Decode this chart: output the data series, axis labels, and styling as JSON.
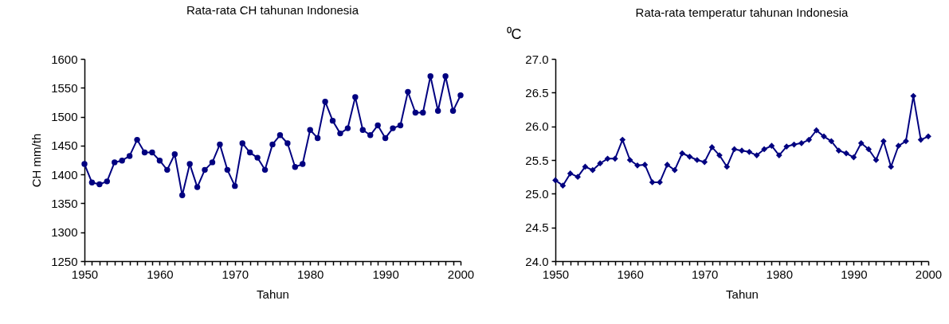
{
  "chart_data": [
    {
      "type": "line",
      "title": "Rata-rata CH tahunan Indonesia",
      "xlabel": "Tahun",
      "ylabel": "CH mm/th",
      "marker": "circle",
      "grid": false,
      "x": [
        1950,
        1951,
        1952,
        1953,
        1954,
        1955,
        1956,
        1957,
        1958,
        1959,
        1960,
        1961,
        1962,
        1963,
        1964,
        1965,
        1966,
        1967,
        1968,
        1969,
        1970,
        1971,
        1972,
        1973,
        1974,
        1975,
        1976,
        1977,
        1978,
        1979,
        1980,
        1981,
        1982,
        1983,
        1984,
        1985,
        1986,
        1987,
        1988,
        1989,
        1990,
        1991,
        1992,
        1993,
        1994,
        1995,
        1996,
        1997,
        1998,
        1999,
        2000
      ],
      "series": [
        {
          "color": "#000080",
          "values": [
            1418,
            1386,
            1383,
            1388,
            1421,
            1424,
            1432,
            1460,
            1438,
            1438,
            1424,
            1408,
            1435,
            1364,
            1418,
            1378,
            1408,
            1421,
            1452,
            1408,
            1380,
            1454,
            1438,
            1429,
            1408,
            1452,
            1468,
            1454,
            1413,
            1418,
            1477,
            1463,
            1526,
            1493,
            1471,
            1480,
            1534,
            1477,
            1468,
            1485,
            1463,
            1480,
            1485,
            1543,
            1507,
            1507,
            1570,
            1510,
            1570,
            1510,
            1537
          ]
        }
      ],
      "xlim": [
        1950,
        2000
      ],
      "xticks": [
        1950,
        {
          "value": 1951,
          "label": null
        },
        {
          "value": 1952,
          "label": null
        },
        {
          "value": 1953,
          "label": null
        },
        {
          "value": 1954,
          "label": null
        },
        {
          "value": 1955,
          "label": null
        },
        {
          "value": 1956,
          "label": null
        },
        {
          "value": 1957,
          "label": null
        },
        {
          "value": 1958,
          "label": null
        },
        {
          "value": 1959,
          "label": null
        },
        1960,
        {
          "value": 1961,
          "label": null
        },
        {
          "value": 1962,
          "label": null
        },
        {
          "value": 1963,
          "label": null
        },
        {
          "value": 1964,
          "label": null
        },
        {
          "value": 1965,
          "label": null
        },
        {
          "value": 1966,
          "label": null
        },
        {
          "value": 1967,
          "label": null
        },
        {
          "value": 1968,
          "label": null
        },
        {
          "value": 1969,
          "label": null
        },
        1970,
        {
          "value": 1971,
          "label": null
        },
        {
          "value": 1972,
          "label": null
        },
        {
          "value": 1973,
          "label": null
        },
        {
          "value": 1974,
          "label": null
        },
        {
          "value": 1975,
          "label": null
        },
        {
          "value": 1976,
          "label": null
        },
        {
          "value": 1977,
          "label": null
        },
        {
          "value": 1978,
          "label": null
        },
        {
          "value": 1979,
          "label": null
        },
        1980,
        {
          "value": 1981,
          "label": null
        },
        {
          "value": 1982,
          "label": null
        },
        {
          "value": 1983,
          "label": null
        },
        {
          "value": 1984,
          "label": null
        },
        {
          "value": 1985,
          "label": null
        },
        {
          "value": 1986,
          "label": null
        },
        {
          "value": 1987,
          "label": null
        },
        {
          "value": 1988,
          "label": null
        },
        {
          "value": 1989,
          "label": null
        },
        1990,
        {
          "value": 1991,
          "label": null
        },
        {
          "value": 1992,
          "label": null
        },
        {
          "value": 1993,
          "label": null
        },
        {
          "value": 1994,
          "label": null
        },
        {
          "value": 1995,
          "label": null
        },
        {
          "value": 1996,
          "label": null
        },
        {
          "value": 1997,
          "label": null
        },
        {
          "value": 1998,
          "label": null
        },
        {
          "value": 1999,
          "label": null
        },
        2000
      ],
      "ylim": [
        1250,
        1600
      ],
      "yticks": [
        1250,
        1300,
        1350,
        1400,
        1450,
        1500,
        1550,
        1600
      ]
    },
    {
      "type": "line",
      "title": "Rata-rata temperatur tahunan Indonesia",
      "xlabel": "Tahun",
      "ylabel": "⁰C",
      "marker": "diamond",
      "grid": false,
      "x": [
        1950,
        1951,
        1952,
        1953,
        1954,
        1955,
        1956,
        1957,
        1958,
        1959,
        1960,
        1961,
        1962,
        1963,
        1964,
        1965,
        1966,
        1967,
        1968,
        1969,
        1970,
        1971,
        1972,
        1973,
        1974,
        1975,
        1976,
        1977,
        1978,
        1979,
        1980,
        1981,
        1982,
        1983,
        1984,
        1985,
        1986,
        1987,
        1988,
        1989,
        1990,
        1991,
        1992,
        1993,
        1994,
        1995,
        1996,
        1997,
        1998,
        1999,
        2000
      ],
      "series": [
        {
          "color": "#000080",
          "values": [
            25.2,
            25.12,
            25.3,
            25.25,
            25.4,
            25.35,
            25.45,
            25.52,
            25.52,
            25.8,
            25.5,
            25.42,
            25.43,
            25.17,
            25.17,
            25.43,
            25.35,
            25.6,
            25.55,
            25.5,
            25.47,
            25.69,
            25.57,
            25.4,
            25.66,
            25.64,
            25.62,
            25.57,
            25.66,
            25.71,
            25.57,
            25.7,
            25.73,
            25.75,
            25.8,
            25.94,
            25.85,
            25.78,
            25.64,
            25.6,
            25.54,
            25.75,
            25.66,
            25.5,
            25.78,
            25.4,
            25.71,
            25.78,
            26.45,
            25.8,
            25.85
          ]
        }
      ],
      "xlim": [
        1950,
        2000
      ],
      "xticks": [
        1950,
        {
          "value": 1951,
          "label": null
        },
        {
          "value": 1952,
          "label": null
        },
        {
          "value": 1953,
          "label": null
        },
        {
          "value": 1954,
          "label": null
        },
        {
          "value": 1955,
          "label": null
        },
        {
          "value": 1956,
          "label": null
        },
        {
          "value": 1957,
          "label": null
        },
        {
          "value": 1958,
          "label": null
        },
        {
          "value": 1959,
          "label": null
        },
        1960,
        {
          "value": 1961,
          "label": null
        },
        {
          "value": 1962,
          "label": null
        },
        {
          "value": 1963,
          "label": null
        },
        {
          "value": 1964,
          "label": null
        },
        {
          "value": 1965,
          "label": null
        },
        {
          "value": 1966,
          "label": null
        },
        {
          "value": 1967,
          "label": null
        },
        {
          "value": 1968,
          "label": null
        },
        {
          "value": 1969,
          "label": null
        },
        1970,
        {
          "value": 1971,
          "label": null
        },
        {
          "value": 1972,
          "label": null
        },
        {
          "value": 1973,
          "label": null
        },
        {
          "value": 1974,
          "label": null
        },
        {
          "value": 1975,
          "label": null
        },
        {
          "value": 1976,
          "label": null
        },
        {
          "value": 1977,
          "label": null
        },
        {
          "value": 1978,
          "label": null
        },
        {
          "value": 1979,
          "label": null
        },
        1980,
        {
          "value": 1981,
          "label": null
        },
        {
          "value": 1982,
          "label": null
        },
        {
          "value": 1983,
          "label": null
        },
        {
          "value": 1984,
          "label": null
        },
        {
          "value": 1985,
          "label": null
        },
        {
          "value": 1986,
          "label": null
        },
        {
          "value": 1987,
          "label": null
        },
        {
          "value": 1988,
          "label": null
        },
        {
          "value": 1989,
          "label": null
        },
        1990,
        {
          "value": 1991,
          "label": null
        },
        {
          "value": 1992,
          "label": null
        },
        {
          "value": 1993,
          "label": null
        },
        {
          "value": 1994,
          "label": null
        },
        {
          "value": 1995,
          "label": null
        },
        {
          "value": 1996,
          "label": null
        },
        {
          "value": 1997,
          "label": null
        },
        {
          "value": 1998,
          "label": null
        },
        {
          "value": 1999,
          "label": null
        },
        2000
      ],
      "ylim": [
        24.0,
        27.0
      ],
      "yticks": [
        {
          "value": 24,
          "label": "24.0"
        },
        24.5,
        {
          "value": 25,
          "label": "25.0"
        },
        25.5,
        {
          "value": 26,
          "label": "26.0"
        },
        26.5,
        {
          "value": 27,
          "label": "27.0"
        }
      ]
    }
  ]
}
